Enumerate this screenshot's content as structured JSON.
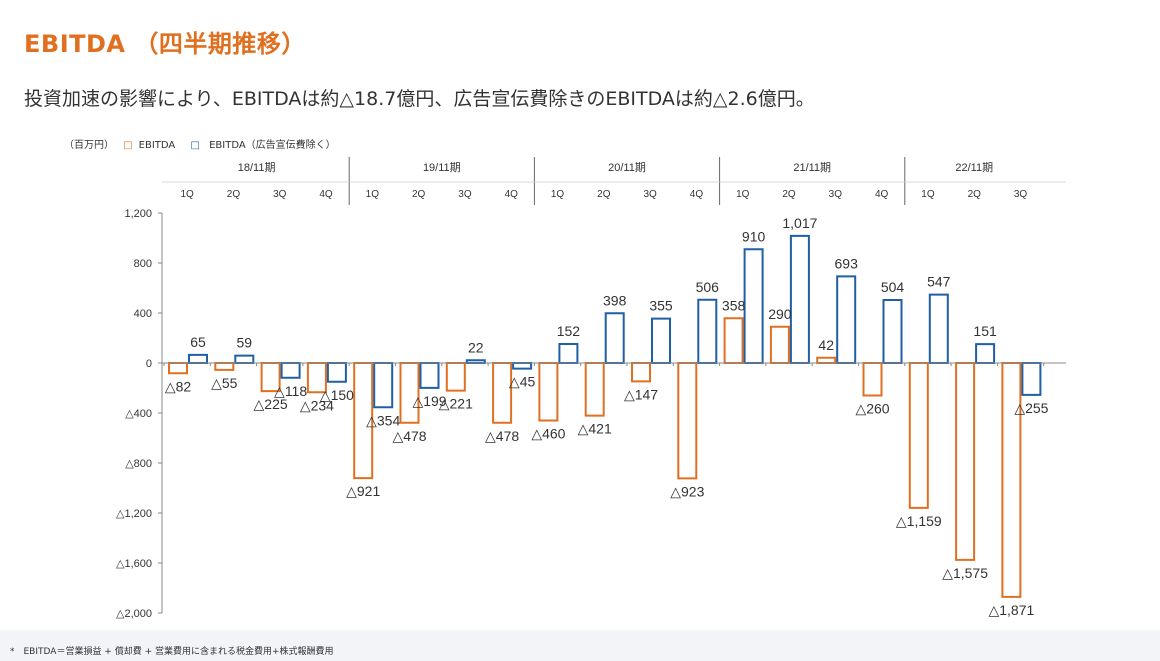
{
  "title": "EBITDA （四半期推移）",
  "subtitle": "投資加速の影響により、EBITDAは約△18.7億円、広告宣伝費除きのEBITDAは約△2.6億円。",
  "footnote": "*　EBITDA＝営業損益 + 償却費 + 営業費用に含まれる税金費用+株式報酬費用",
  "colors": {
    "orange": "#e07020",
    "blue": "#1f5fa6",
    "title": "#e07020"
  },
  "chart_data": {
    "type": "bar",
    "unit_label": "（百万円）",
    "fiscal_years": [
      {
        "label": "18/11期",
        "quarters": [
          "1Q",
          "2Q",
          "3Q",
          "4Q"
        ]
      },
      {
        "label": "19/11期",
        "quarters": [
          "1Q",
          "2Q",
          "3Q",
          "4Q"
        ]
      },
      {
        "label": "20/11期",
        "quarters": [
          "1Q",
          "2Q",
          "3Q",
          "4Q"
        ]
      },
      {
        "label": "21/11期",
        "quarters": [
          "1Q",
          "2Q",
          "3Q",
          "4Q"
        ]
      },
      {
        "label": "22/11期",
        "quarters": [
          "1Q",
          "2Q",
          "3Q"
        ]
      }
    ],
    "series": [
      {
        "name": "EBITDA",
        "color": "#e07020",
        "values": [
          -82,
          -55,
          -225,
          -234,
          -921,
          -478,
          -221,
          -478,
          -460,
          -421,
          -147,
          -923,
          358,
          290,
          42,
          -260,
          -1159,
          -1575,
          -1871
        ],
        "labels": [
          "△82",
          "△55",
          "△225",
          "△234",
          "△921",
          "△478",
          "△221",
          "△478",
          "△460",
          "△421",
          "△147",
          "△923",
          "358",
          "290",
          "42",
          "△260",
          "△1,159",
          "△1,575",
          "△1,871"
        ]
      },
      {
        "name": "EBITDA（広告宣伝費除く）",
        "color": "#1f5fa6",
        "values": [
          65,
          59,
          -118,
          -150,
          -354,
          -199,
          22,
          -45,
          152,
          398,
          355,
          506,
          910,
          1017,
          693,
          504,
          547,
          151,
          -255
        ],
        "labels": [
          "65",
          "59",
          "△118",
          "△150",
          "△354",
          "△199",
          "22",
          "△45",
          "152",
          "398",
          "355",
          "506",
          "910",
          "1,017",
          "693",
          "504",
          "547",
          "151",
          "△255"
        ]
      }
    ],
    "yticks": [
      1200,
      800,
      400,
      0,
      -400,
      -800,
      -1200,
      -1600,
      -2000
    ],
    "ytick_labels": [
      "1,200",
      "800",
      "400",
      "0",
      "△400",
      "△800",
      "△1,200",
      "△1,600",
      "△2,000"
    ],
    "ylim": [
      -2000,
      1200
    ],
    "legend_position": "top-left",
    "grid": false
  }
}
